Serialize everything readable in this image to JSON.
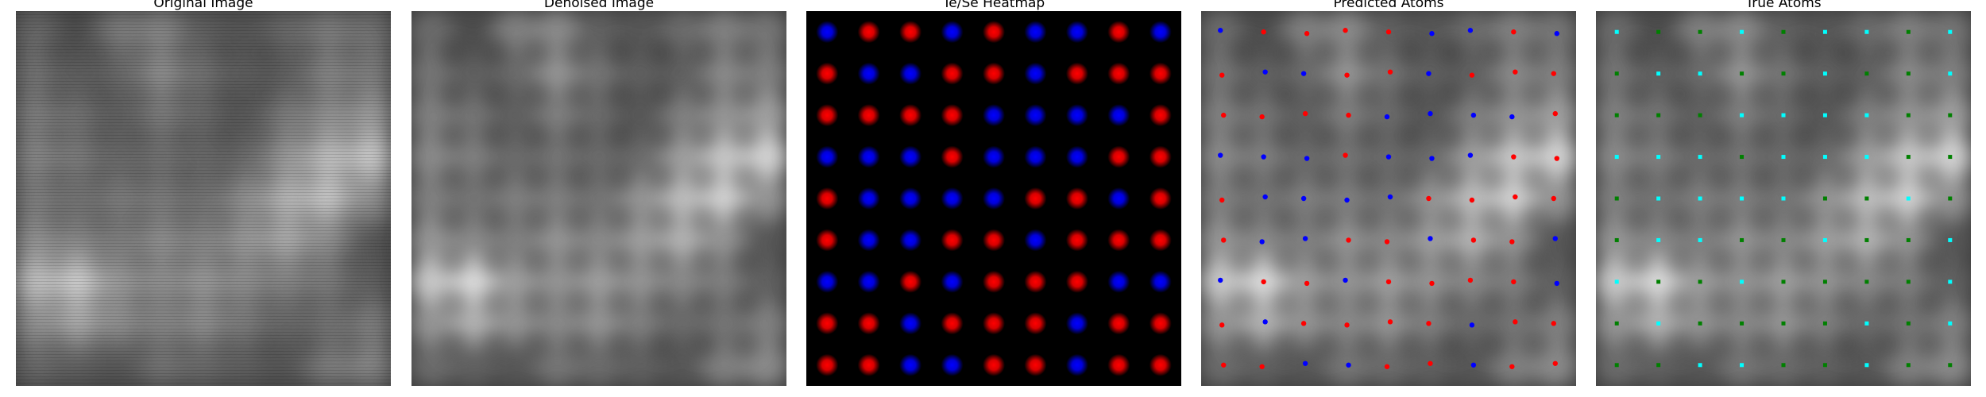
{
  "figure": {
    "panels": [
      {
        "key": "original",
        "title": "Original Image"
      },
      {
        "key": "denoised",
        "title": "Denoised Image"
      },
      {
        "key": "heatmap",
        "title": "Te/Se Heatmap"
      },
      {
        "key": "predicted",
        "title": "Predicted Atoms"
      },
      {
        "key": "true",
        "title": "True Atoms"
      }
    ]
  },
  "colors": {
    "te": "#ff0000",
    "se": "#0000ff",
    "true_a": "#00ffff",
    "true_b": "#008000",
    "background_dark": "#000000"
  },
  "lattice": {
    "rows": 9,
    "cols": 9,
    "heatmap_types": [
      [
        "se",
        "te",
        "te",
        "se",
        "te",
        "se",
        "se",
        "te",
        "se"
      ],
      [
        "te",
        "se",
        "se",
        "te",
        "te",
        "se",
        "te",
        "te",
        "te"
      ],
      [
        "te",
        "te",
        "te",
        "te",
        "se",
        "se",
        "se",
        "se",
        "te"
      ],
      [
        "se",
        "se",
        "se",
        "te",
        "se",
        "se",
        "se",
        "te",
        "te"
      ],
      [
        "te",
        "se",
        "se",
        "se",
        "se",
        "te",
        "te",
        "se",
        "te"
      ],
      [
        "te",
        "se",
        "se",
        "te",
        "te",
        "se",
        "te",
        "te",
        "te"
      ],
      [
        "se",
        "se",
        "te",
        "se",
        "te",
        "te",
        "te",
        "se",
        "se"
      ],
      [
        "te",
        "te",
        "se",
        "te",
        "te",
        "te",
        "se",
        "te",
        "te"
      ],
      [
        "te",
        "te",
        "se",
        "se",
        "te",
        "te",
        "se",
        "te",
        "te"
      ]
    ],
    "predicted_types": [
      [
        "se",
        "te",
        "te",
        "te",
        "te",
        "se",
        "se",
        "te",
        "se"
      ],
      [
        "te",
        "se",
        "se",
        "te",
        "te",
        "se",
        "te",
        "te",
        "te"
      ],
      [
        "te",
        "te",
        "te",
        "te",
        "se",
        "se",
        "se",
        "se",
        "te"
      ],
      [
        "se",
        "se",
        "se",
        "te",
        "se",
        "se",
        "se",
        "te",
        "te"
      ],
      [
        "te",
        "se",
        "se",
        "se",
        "se",
        "te",
        "te",
        "te",
        "te"
      ],
      [
        "te",
        "se",
        "se",
        "te",
        "te",
        "se",
        "te",
        "te",
        "se"
      ],
      [
        "se",
        "te",
        "te",
        "se",
        "te",
        "te",
        "te",
        "te",
        "se"
      ],
      [
        "te",
        "se",
        "te",
        "te",
        "te",
        "te",
        "se",
        "te",
        "te"
      ],
      [
        "te",
        "te",
        "se",
        "se",
        "te",
        "te",
        "se",
        "te",
        "te"
      ]
    ],
    "true_types": [
      [
        "a",
        "b",
        "b",
        "a",
        "b",
        "a",
        "a",
        "b",
        "a"
      ],
      [
        "b",
        "a",
        "a",
        "b",
        "b",
        "a",
        "b",
        "b",
        "a"
      ],
      [
        "b",
        "b",
        "b",
        "a",
        "a",
        "a",
        "a",
        "b",
        "b"
      ],
      [
        "a",
        "a",
        "a",
        "b",
        "a",
        "a",
        "a",
        "b",
        "b"
      ],
      [
        "b",
        "a",
        "a",
        "a",
        "a",
        "b",
        "b",
        "a",
        "b"
      ],
      [
        "b",
        "a",
        "a",
        "b",
        "b",
        "a",
        "b",
        "b",
        "a"
      ],
      [
        "a",
        "b",
        "b",
        "a",
        "b",
        "b",
        "b",
        "b",
        "a"
      ],
      [
        "b",
        "a",
        "b",
        "b",
        "b",
        "b",
        "a",
        "b",
        "a"
      ],
      [
        "b",
        "b",
        "a",
        "a",
        "b",
        "b",
        "a",
        "b",
        "b"
      ]
    ],
    "brightness": [
      [
        0.35,
        0.2,
        0.45,
        0.5,
        0.3,
        0.25,
        0.35,
        0.45,
        0.4
      ],
      [
        0.4,
        0.3,
        0.35,
        0.55,
        0.4,
        0.3,
        0.3,
        0.5,
        0.45
      ],
      [
        0.45,
        0.4,
        0.3,
        0.45,
        0.35,
        0.25,
        0.45,
        0.55,
        0.6
      ],
      [
        0.5,
        0.45,
        0.35,
        0.4,
        0.35,
        0.35,
        0.6,
        0.8,
        0.85
      ],
      [
        0.45,
        0.4,
        0.45,
        0.45,
        0.4,
        0.55,
        0.75,
        0.85,
        0.55
      ],
      [
        0.55,
        0.5,
        0.45,
        0.55,
        0.5,
        0.6,
        0.7,
        0.55,
        0.25
      ],
      [
        0.8,
        0.9,
        0.6,
        0.55,
        0.6,
        0.55,
        0.5,
        0.45,
        0.3
      ],
      [
        0.55,
        0.7,
        0.55,
        0.5,
        0.55,
        0.45,
        0.35,
        0.4,
        0.45
      ],
      [
        0.35,
        0.3,
        0.25,
        0.4,
        0.35,
        0.3,
        0.25,
        0.45,
        0.5
      ]
    ]
  }
}
